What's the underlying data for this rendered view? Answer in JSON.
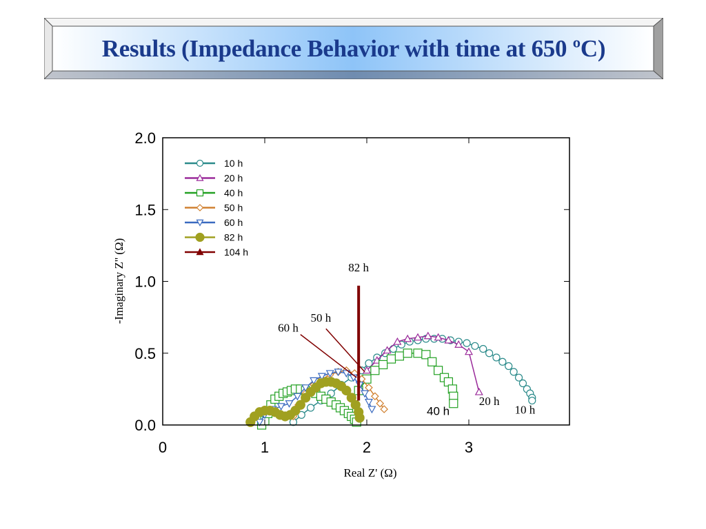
{
  "slide": {
    "title": "Results (Impedance Behavior with time at 650 ºC)",
    "title_color": "#1a3a8c"
  },
  "chart_data": {
    "type": "scatter",
    "title": "",
    "xlabel": "Real Z' (Ω)",
    "ylabel": "-Imaginary Z'' (Ω)",
    "xlim": [
      0,
      4.0
    ],
    "ylim": [
      0,
      2.0
    ],
    "xticks": [
      "0",
      "1",
      "2",
      "3"
    ],
    "yticks": [
      "0.0",
      "0.5",
      "1.0",
      "1.5",
      "2.0"
    ],
    "grid": false,
    "legend_position": "upper-left",
    "series": [
      {
        "name": "10 h",
        "color": "#2a8a8a",
        "marker": "circle-open",
        "x": [
          1.28,
          1.36,
          1.45,
          1.55,
          1.65,
          1.75,
          1.85,
          1.95,
          2.02,
          2.1,
          2.18,
          2.26,
          2.34,
          2.42,
          2.5,
          2.58,
          2.66,
          2.74,
          2.82,
          2.9,
          2.98,
          3.06,
          3.14,
          3.2,
          3.27,
          3.33,
          3.39,
          3.44,
          3.49,
          3.53,
          3.57,
          3.6,
          3.62,
          3.62
        ],
        "y": [
          0.02,
          0.07,
          0.12,
          0.17,
          0.22,
          0.28,
          0.33,
          0.38,
          0.43,
          0.47,
          0.5,
          0.53,
          0.56,
          0.58,
          0.59,
          0.6,
          0.6,
          0.6,
          0.59,
          0.58,
          0.57,
          0.55,
          0.53,
          0.5,
          0.47,
          0.44,
          0.41,
          0.37,
          0.33,
          0.29,
          0.25,
          0.22,
          0.19,
          0.17
        ]
      },
      {
        "name": "20 h",
        "color": "#9a2a9a",
        "marker": "triangle-up-open",
        "x": [
          2.0,
          2.1,
          2.2,
          2.3,
          2.4,
          2.5,
          2.6,
          2.7,
          2.8,
          2.9,
          3.0,
          3.1
        ],
        "y": [
          0.38,
          0.45,
          0.52,
          0.58,
          0.6,
          0.61,
          0.62,
          0.61,
          0.59,
          0.56,
          0.51,
          0.23
        ]
      },
      {
        "name": "40 h",
        "color": "#22a022",
        "marker": "square-open",
        "x": [
          0.97,
          1.0,
          1.03,
          1.06,
          1.1,
          1.14,
          1.18,
          1.22,
          1.26,
          1.3,
          1.35,
          1.4,
          1.45,
          1.5,
          1.55,
          1.6,
          1.65,
          1.7,
          1.74,
          1.78,
          1.82,
          1.85,
          1.88,
          1.9,
          1.92,
          2.0,
          2.08,
          2.16,
          2.24,
          2.32,
          2.4,
          2.5,
          2.58,
          2.64,
          2.7,
          2.76,
          2.8,
          2.84,
          2.85,
          2.85
        ],
        "y": [
          0.0,
          0.03,
          0.08,
          0.14,
          0.18,
          0.2,
          0.22,
          0.23,
          0.24,
          0.25,
          0.25,
          0.24,
          0.23,
          0.22,
          0.2,
          0.18,
          0.16,
          0.14,
          0.12,
          0.1,
          0.08,
          0.06,
          0.04,
          0.02,
          0.24,
          0.32,
          0.38,
          0.42,
          0.46,
          0.48,
          0.5,
          0.5,
          0.49,
          0.44,
          0.38,
          0.33,
          0.3,
          0.25,
          0.2,
          0.15
        ]
      },
      {
        "name": "50 h",
        "color": "#d08030",
        "marker": "diamond-open",
        "x": [
          1.28,
          1.33,
          1.4,
          1.48,
          1.56,
          1.64,
          1.72,
          1.8,
          1.88,
          1.95,
          2.02,
          2.08,
          2.13,
          2.17
        ],
        "y": [
          0.06,
          0.14,
          0.22,
          0.28,
          0.32,
          0.35,
          0.37,
          0.38,
          0.36,
          0.32,
          0.26,
          0.2,
          0.15,
          0.11
        ]
      },
      {
        "name": "60 h",
        "color": "#3a6ac0",
        "marker": "triangle-down-open",
        "x": [
          0.95,
          1.0,
          1.08,
          1.16,
          1.24,
          1.32,
          1.4,
          1.48,
          1.56,
          1.64,
          1.72,
          1.8,
          1.87,
          1.93,
          1.98,
          2.02,
          2.05
        ],
        "y": [
          0.02,
          0.07,
          0.11,
          0.13,
          0.15,
          0.2,
          0.26,
          0.31,
          0.34,
          0.36,
          0.37,
          0.36,
          0.33,
          0.28,
          0.22,
          0.16,
          0.11
        ]
      },
      {
        "name": "82 h",
        "color": "#a0a020",
        "marker": "circle-filled",
        "x": [
          0.86,
          0.9,
          0.95,
          1.0,
          1.05,
          1.1,
          1.15,
          1.2,
          1.25,
          1.3,
          1.35,
          1.4,
          1.45,
          1.5,
          1.55,
          1.6,
          1.65,
          1.7,
          1.75,
          1.8,
          1.85,
          1.89,
          1.92,
          1.93
        ],
        "y": [
          0.02,
          0.06,
          0.09,
          0.1,
          0.1,
          0.09,
          0.07,
          0.06,
          0.07,
          0.1,
          0.14,
          0.19,
          0.23,
          0.26,
          0.29,
          0.3,
          0.3,
          0.29,
          0.27,
          0.24,
          0.19,
          0.14,
          0.09,
          0.05
        ]
      },
      {
        "name": "104 h",
        "color": "#800000",
        "marker": "triangle-up-filled",
        "x": [],
        "y": []
      }
    ],
    "annotations": [
      {
        "text": "82 h",
        "x": 1.92,
        "y": 1.07,
        "line": [
          [
            1.92,
            0.97
          ],
          [
            1.92,
            0.17
          ]
        ]
      },
      {
        "text": "50 h",
        "x": 1.55,
        "y": 0.72,
        "line": [
          [
            1.6,
            0.67
          ],
          [
            1.98,
            0.37
          ]
        ]
      },
      {
        "text": "60 h",
        "x": 1.23,
        "y": 0.65,
        "line": [
          [
            1.35,
            0.63
          ],
          [
            1.9,
            0.33
          ]
        ]
      },
      {
        "text": "40 h",
        "x": 2.7,
        "y": 0.07
      },
      {
        "text": "20 h",
        "x": 3.2,
        "y": 0.14
      },
      {
        "text": "10 h",
        "x": 3.55,
        "y": 0.08
      }
    ]
  }
}
